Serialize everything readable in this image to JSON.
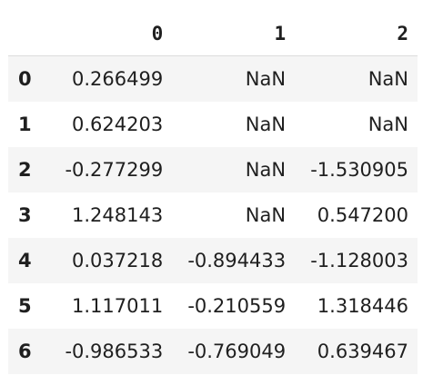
{
  "table": {
    "columns": [
      "0",
      "1",
      "2"
    ],
    "rows": [
      {
        "index": "0",
        "values": [
          "0.266499",
          "NaN",
          "NaN"
        ]
      },
      {
        "index": "1",
        "values": [
          "0.624203",
          "NaN",
          "NaN"
        ]
      },
      {
        "index": "2",
        "values": [
          "-0.277299",
          "NaN",
          "-1.530905"
        ]
      },
      {
        "index": "3",
        "values": [
          "1.248143",
          "NaN",
          "0.547200"
        ]
      },
      {
        "index": "4",
        "values": [
          "0.037218",
          "-0.894433",
          "-1.128003"
        ]
      },
      {
        "index": "5",
        "values": [
          "1.117011",
          "-0.210559",
          "1.318446"
        ]
      },
      {
        "index": "6",
        "values": [
          "-0.986533",
          "-0.769049",
          "0.639467"
        ]
      }
    ]
  }
}
